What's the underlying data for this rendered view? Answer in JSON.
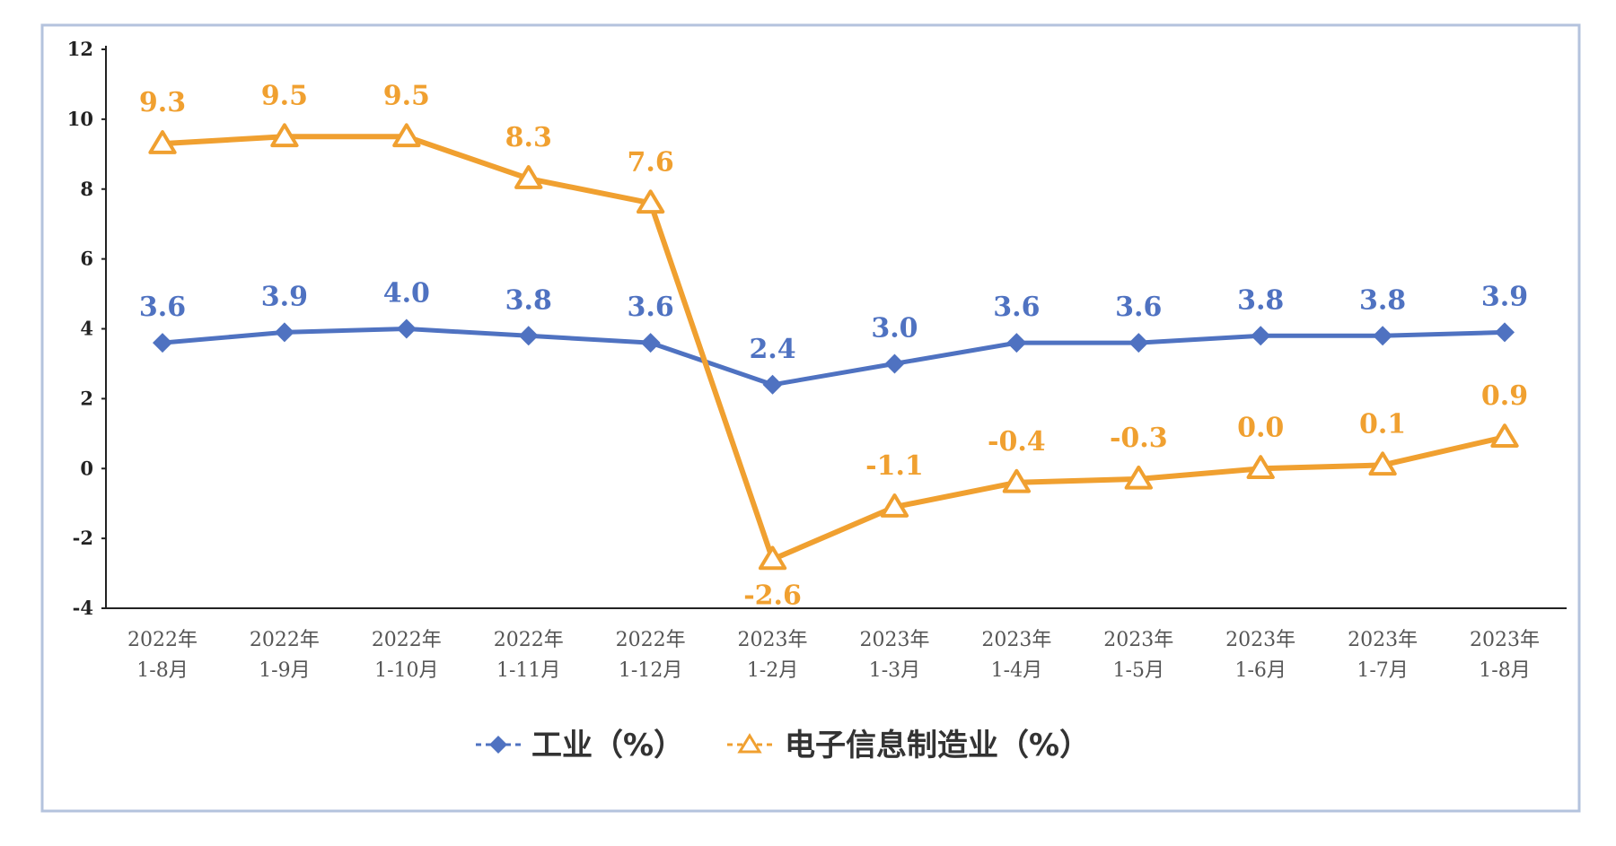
{
  "chart_data": {
    "type": "line",
    "categories": [
      [
        "2022年",
        "1-8月"
      ],
      [
        "2022年",
        "1-9月"
      ],
      [
        "2022年",
        "1-10月"
      ],
      [
        "2022年",
        "1-11月"
      ],
      [
        "2022年",
        "1-12月"
      ],
      [
        "2023年",
        "1-2月"
      ],
      [
        "2023年",
        "1-3月"
      ],
      [
        "2023年",
        "1-4月"
      ],
      [
        "2023年",
        "1-5月"
      ],
      [
        "2023年",
        "1-6月"
      ],
      [
        "2023年",
        "1-7月"
      ],
      [
        "2023年",
        "1-8月"
      ]
    ],
    "series": [
      {
        "name": "工业（%）",
        "color": "#4f72c1",
        "marker": "diamond",
        "values": [
          3.6,
          3.9,
          4.0,
          3.8,
          3.6,
          2.4,
          3.0,
          3.6,
          3.6,
          3.8,
          3.8,
          3.9
        ],
        "labels": [
          "3.6",
          "3.9",
          "4.0",
          "3.8",
          "3.6",
          "2.4",
          "3.0",
          "3.6",
          "3.6",
          "3.8",
          "3.8",
          "3.9"
        ]
      },
      {
        "name": "电子信息制造业（%）",
        "color": "#f0a030",
        "marker": "triangle",
        "values": [
          9.3,
          9.5,
          9.5,
          8.3,
          7.6,
          -2.6,
          -1.1,
          -0.4,
          -0.3,
          0.0,
          0.1,
          0.9
        ],
        "labels": [
          "9.3",
          "9.5",
          "9.5",
          "8.3",
          "7.6",
          "-2.6",
          "-1.1",
          "-0.4",
          "-0.3",
          "0.0",
          "0.1",
          "0.9"
        ]
      }
    ],
    "yticks": [
      "12",
      "10",
      "8",
      "6",
      "4",
      "2",
      "0",
      "-2",
      "-4"
    ],
    "ylim": [
      -4,
      12
    ],
    "grid": false,
    "legend_position": "bottom"
  }
}
